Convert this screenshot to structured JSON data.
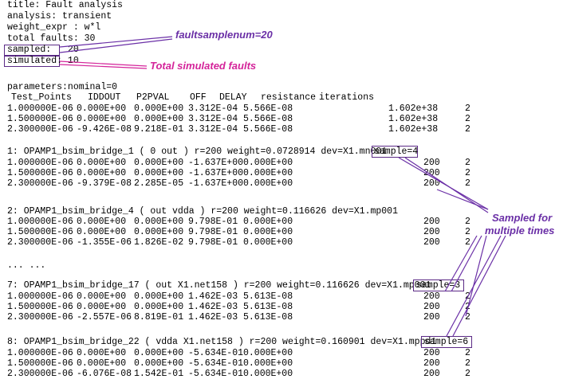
{
  "header": [
    "title: Fault analysis",
    "analysis: transient",
    "weight_expr : w*l",
    "total faults: 30",
    "sampled:   20",
    "simulated: 10"
  ],
  "annotations": {
    "faultsamplenum": "faultsamplenum=20",
    "total_simulated": "Total simulated faults",
    "sampled_multiple": [
      "Sampled for",
      "multiple times"
    ]
  },
  "parameters_line": "parameters:nominal=0",
  "columns": [
    "Test_Points",
    "IDDOUT",
    "P2PVAL",
    "OFF",
    "DELAY",
    "resistance",
    "iterations"
  ],
  "nominal_rows": [
    [
      "1.000000E-06",
      "0.000E+00",
      "0.000E+00",
      "3.312E-04",
      "5.566E-08",
      "1.602e+38",
      "2"
    ],
    [
      "1.500000E-06",
      "0.000E+00",
      "0.000E+00",
      "3.312E-04",
      "5.566E-08",
      "1.602e+38",
      "2"
    ],
    [
      "2.300000E-06",
      "-9.426E-08",
      "9.218E-01",
      "3.312E-04",
      "5.566E-08",
      "1.602e+38",
      "2"
    ]
  ],
  "faults": [
    {
      "header": "1: OPAMP1_bsim_bridge_1 ( 0 out ) r=200 weight=0.0728914 dev=X1.mn001",
      "sample": "sample=4",
      "rows": [
        [
          "1.000000E-06",
          "0.000E+00",
          "0.000E+00",
          "-1.637E+00",
          "0.000E+00",
          "200",
          "2"
        ],
        [
          "1.500000E-06",
          "0.000E+00",
          "0.000E+00",
          "-1.637E+00",
          "0.000E+00",
          "200",
          "2"
        ],
        [
          "2.300000E-06",
          "-9.379E-08",
          "2.285E-05",
          "-1.637E+00",
          "0.000E+00",
          "200",
          "2"
        ]
      ]
    },
    {
      "header": "2: OPAMP1_bsim_bridge_4 ( out vdda ) r=200 weight=0.116626 dev=X1.mp001",
      "sample": "",
      "rows": [
        [
          "1.000000E-06",
          "0.000E+00",
          "0.000E+00",
          "9.798E-01",
          "0.000E+00",
          "200",
          "2"
        ],
        [
          "1.500000E-06",
          "0.000E+00",
          "0.000E+00",
          "9.798E-01",
          "0.000E+00",
          "200",
          "2"
        ],
        [
          "2.300000E-06",
          "-1.355E-06",
          "1.826E-02",
          "9.798E-01",
          "0.000E+00",
          "200",
          "2"
        ]
      ]
    },
    {
      "header": "7: OPAMP1_bsim_bridge_17 ( out X1.net158 ) r=200 weight=0.116626 dev=X1.mp001",
      "sample": "sample=3",
      "rows": [
        [
          "1.000000E-06",
          "0.000E+00",
          "0.000E+00",
          "1.462E-03",
          "5.613E-08",
          "200",
          "2"
        ],
        [
          "1.500000E-06",
          "0.000E+00",
          "0.000E+00",
          "1.462E-03",
          "5.613E-08",
          "200",
          "2"
        ],
        [
          "2.300000E-06",
          "-2.557E-06",
          "8.819E-01",
          "1.462E-03",
          "5.613E-08",
          "200",
          "2"
        ]
      ]
    },
    {
      "header": "8: OPAMP1_bsim_bridge_22 ( vdda X1.net158 ) r=200 weight=0.160901 dev=X1.mppd1",
      "sample": "sample=6",
      "rows": [
        [
          "1.000000E-06",
          "0.000E+00",
          "0.000E+00",
          "-5.634E-01",
          "0.000E+00",
          "200",
          "2"
        ],
        [
          "1.500000E-06",
          "0.000E+00",
          "0.000E+00",
          "-5.634E-01",
          "0.000E+00",
          "200",
          "2"
        ],
        [
          "2.300000E-06",
          "-6.076E-08",
          "1.542E-01",
          "-5.634E-01",
          "0.000E+00",
          "200",
          "2"
        ]
      ]
    }
  ],
  "ellipsis": "... ...",
  "colors": {
    "box_border": "#5b2a86",
    "annotation_purple": "#6a2fa6",
    "annotation_pink": "#d4249a"
  }
}
